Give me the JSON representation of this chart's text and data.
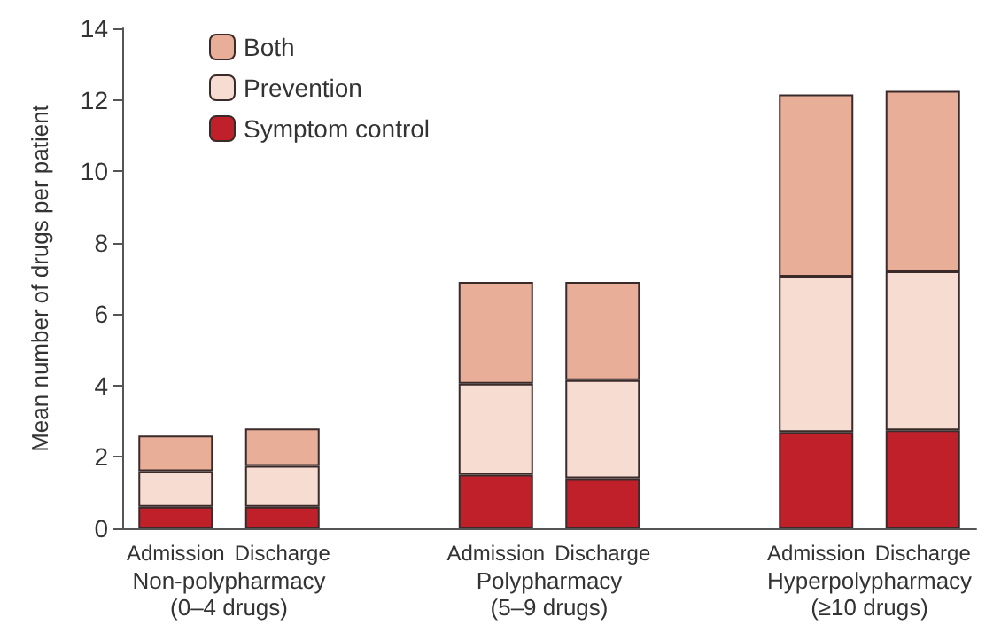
{
  "chart_data": {
    "type": "bar",
    "stacked": true,
    "ylabel": "Mean number of drugs per patient",
    "categories": [
      "Admission",
      "Discharge",
      null,
      "Admission",
      "Discharge",
      null,
      "Admission",
      "Discharge"
    ],
    "series": [
      {
        "name": "Symptom control",
        "color": "#c0202a",
        "values": [
          0.6,
          0.6,
          null,
          1.5,
          1.4,
          null,
          2.7,
          2.75
        ]
      },
      {
        "name": "Prevention",
        "color": "#f7dcd2",
        "values": [
          1.0,
          1.15,
          null,
          2.55,
          2.75,
          null,
          4.35,
          4.45
        ]
      },
      {
        "name": "Both",
        "color": "#e8ae98",
        "values": [
          1.0,
          1.05,
          null,
          2.85,
          2.75,
          null,
          5.1,
          5.05
        ]
      }
    ],
    "ylim": [
      0,
      14
    ],
    "yticks": [
      0,
      2,
      4,
      6,
      8,
      10,
      12,
      14
    ],
    "grid": false,
    "legend": "top left",
    "annotations": [
      "Non-polypharmacy\n(0–4 drugs)",
      "Polypharmacy\n(5–9 drugs)",
      "Hyperpolypharmacy\n(≥10 drugs)"
    ]
  }
}
